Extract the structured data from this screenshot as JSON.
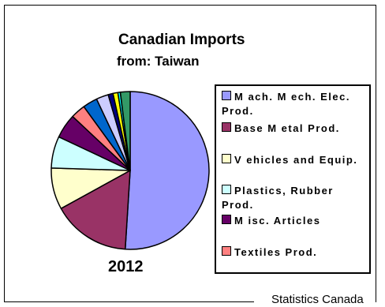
{
  "chart_data": {
    "type": "pie",
    "title": "Canadian Imports",
    "subtitle": "from: Taiwan",
    "year_label": "2012",
    "source": "Statistics Canada",
    "slices": [
      {
        "label": "M ach. M ech. Elec. Prod.",
        "value": 51.0,
        "color": "#9999ff",
        "in_legend": true
      },
      {
        "label": "Base M etal Prod.",
        "value": 16.0,
        "color": "#993366",
        "in_legend": true
      },
      {
        "label": "V ehicles and Equip.",
        "value": 8.5,
        "color": "#ffffcc",
        "in_legend": true
      },
      {
        "label": "Plastics, Rubber Prod.",
        "value": 6.5,
        "color": "#ccffff",
        "in_legend": true
      },
      {
        "label": "M isc. Articles",
        "value": 5.0,
        "color": "#660066",
        "in_legend": true
      },
      {
        "label": "Textiles Prod.",
        "value": 3.0,
        "color": "#ff8080",
        "in_legend": true
      },
      {
        "label": "",
        "value": 3.0,
        "color": "#0066cc",
        "in_legend": false
      },
      {
        "label": "",
        "value": 2.5,
        "color": "#ccccff",
        "in_legend": false
      },
      {
        "label": "",
        "value": 1.0,
        "color": "#000080",
        "in_legend": false
      },
      {
        "label": "",
        "value": 1.0,
        "color": "#ffff00",
        "in_legend": false
      },
      {
        "label": "",
        "value": 0.5,
        "color": "#00ffff",
        "in_legend": false
      },
      {
        "label": "",
        "value": 2.0,
        "color": "#339966",
        "in_legend": false
      }
    ]
  }
}
